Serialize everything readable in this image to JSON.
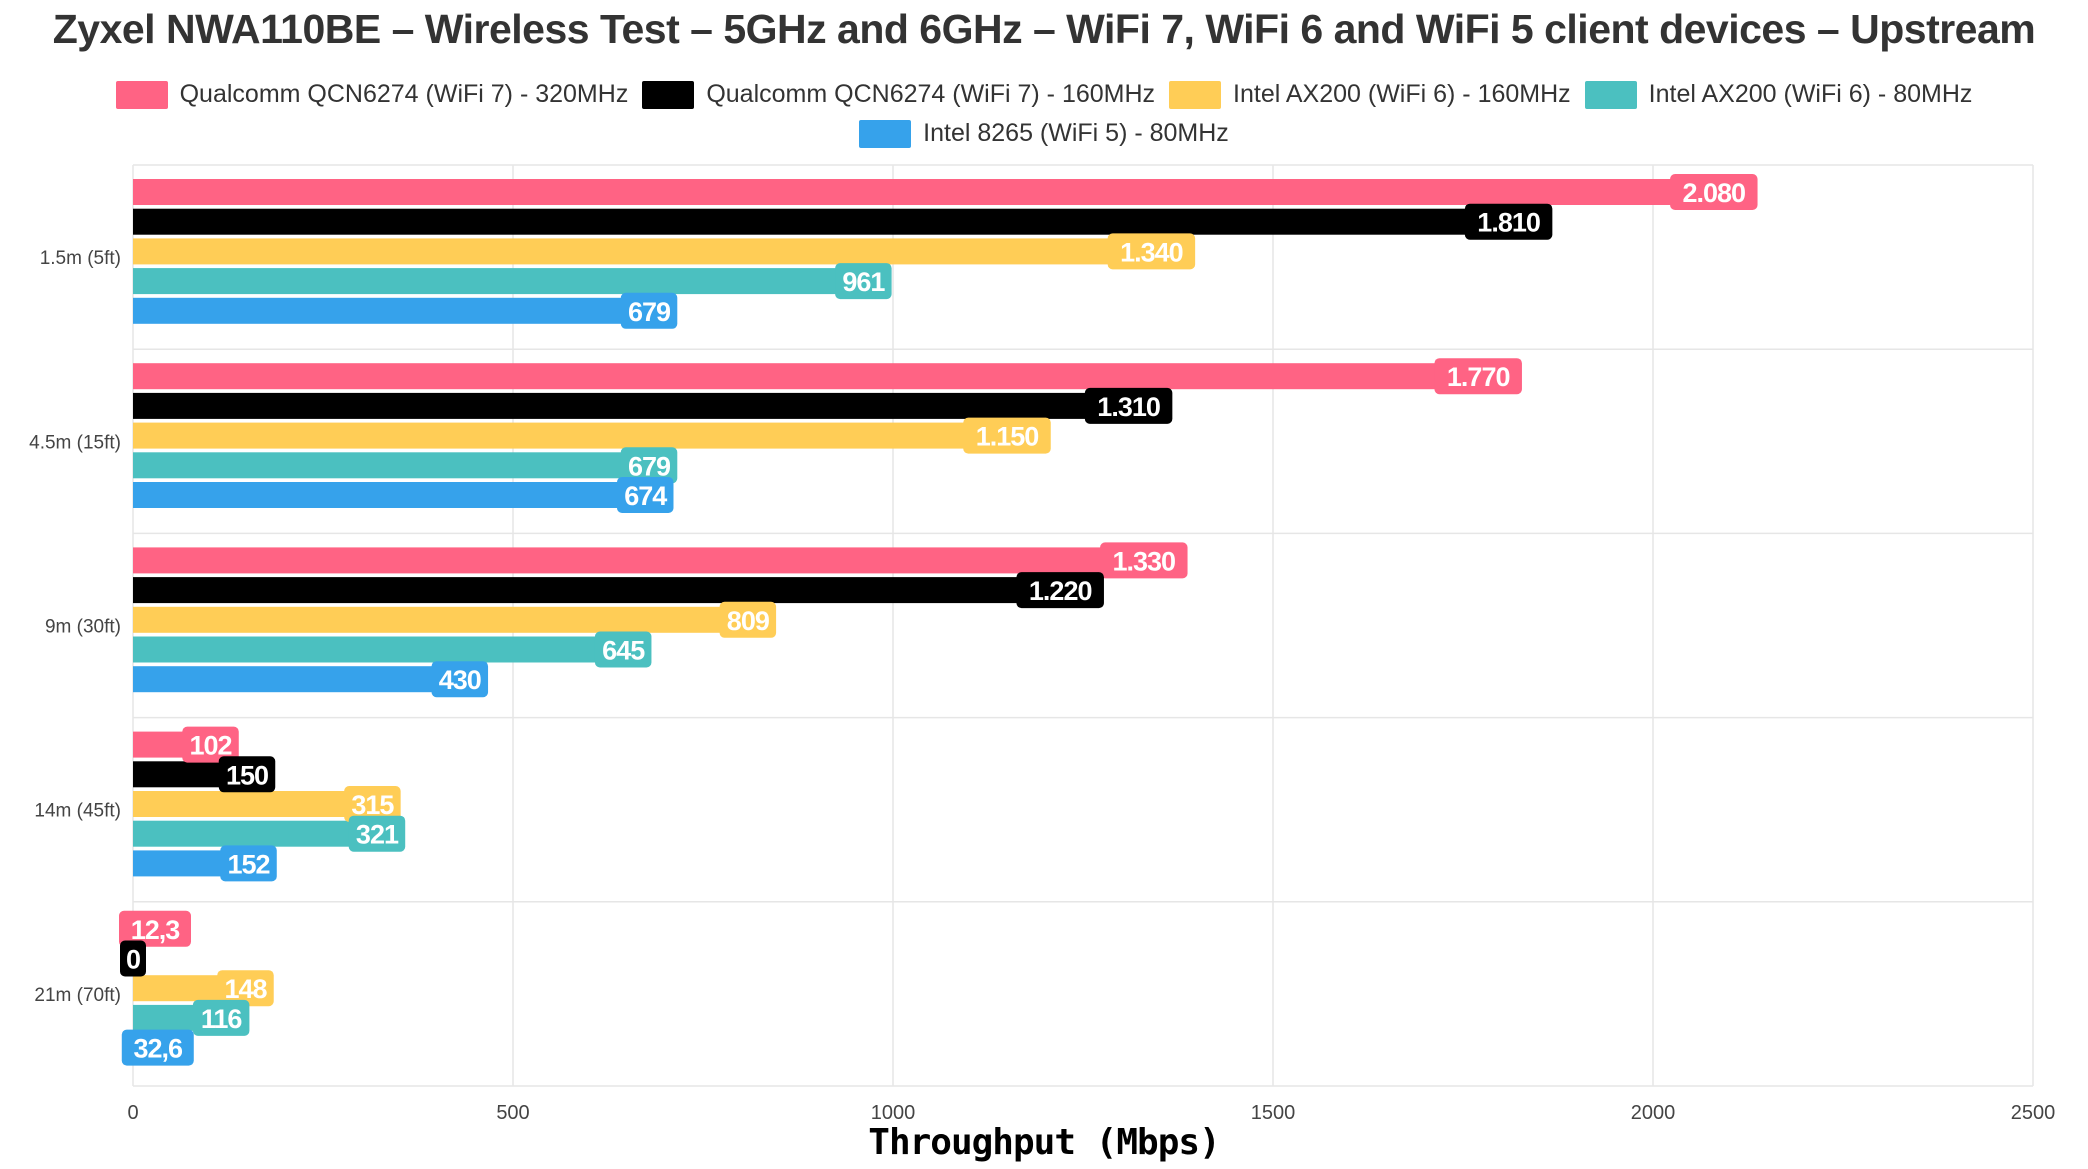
{
  "chart_data": {
    "type": "bar",
    "orientation": "horizontal",
    "title": "Zyxel NWA110BE – Wireless Test – 5GHz and 6GHz – WiFi 7, WiFi 6 and WiFi 5 client devices – Upstream",
    "xlabel": "Throughput (Mbps)",
    "ylabel": "",
    "xlim": [
      0,
      2500
    ],
    "xticks": [
      0,
      500,
      1000,
      1500,
      2000,
      2500
    ],
    "categories": [
      "1.5m (5ft)",
      "4.5m (15ft)",
      "9m (30ft)",
      "14m (45ft)",
      "21m (70ft)"
    ],
    "grid": true,
    "legend_position": "top",
    "series": [
      {
        "name": "Qualcomm QCN6274 (WiFi 7) - 320MHz",
        "color": "#ff6384",
        "values": [
          2080,
          1770,
          1330,
          102,
          12.3
        ],
        "labels": [
          "2.080",
          "1.770",
          "1.330",
          "102",
          "12,3"
        ]
      },
      {
        "name": "Qualcomm QCN6274 (WiFi 7) - 160MHz",
        "color": "#000000",
        "values": [
          1810,
          1310,
          1220,
          150,
          0
        ],
        "labels": [
          "1.810",
          "1.310",
          "1.220",
          "150",
          "0"
        ]
      },
      {
        "name": "Intel AX200 (WiFi 6) - 160MHz",
        "color": "#ffcd56",
        "values": [
          1340,
          1150,
          809,
          315,
          148
        ],
        "labels": [
          "1.340",
          "1.150",
          "809",
          "315",
          "148"
        ]
      },
      {
        "name": "Intel AX200 (WiFi 6) - 80MHz",
        "color": "#4bc0c0",
        "values": [
          961,
          679,
          645,
          321,
          116
        ],
        "labels": [
          "961",
          "679",
          "645",
          "321",
          "116"
        ]
      },
      {
        "name": "Intel 8265 (WiFi 5) - 80MHz",
        "color": "#36a2eb",
        "values": [
          679,
          674,
          430,
          152,
          32.6
        ],
        "labels": [
          "679",
          "674",
          "430",
          "152",
          "32,6"
        ]
      }
    ]
  }
}
